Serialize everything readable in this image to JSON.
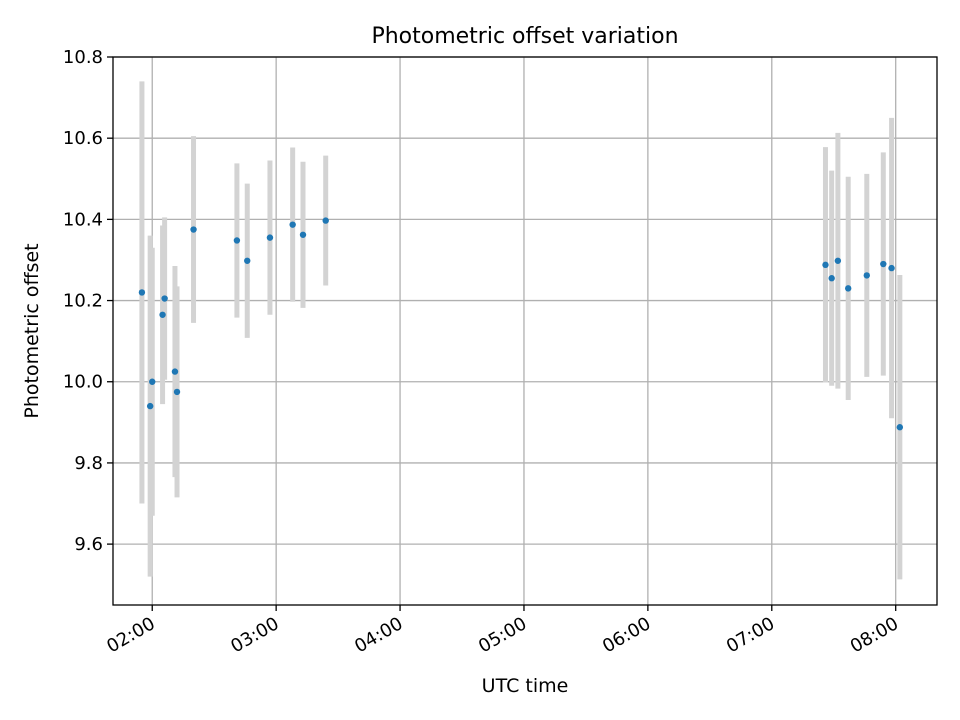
{
  "chart_data": {
    "type": "scatter",
    "title": "Photometric offset variation",
    "xlabel": "UTC time",
    "ylabel": "Photometric offset",
    "xlim": [
      "01:41",
      "08:20"
    ],
    "ylim": [
      9.45,
      10.8
    ],
    "x_ticks": [
      "02:00",
      "03:00",
      "04:00",
      "05:00",
      "06:00",
      "07:00",
      "08:00"
    ],
    "y_ticks": [
      "9.6",
      "9.8",
      "10.0",
      "10.2",
      "10.4",
      "10.6",
      "10.8"
    ],
    "grid": true,
    "legend": "none",
    "point_color": "#1f77b4",
    "errorbar_color": "#d3d3d3",
    "points": [
      {
        "x": "01:55",
        "y": 10.22,
        "yerr": 0.52
      },
      {
        "x": "01:59",
        "y": 9.94,
        "yerr": 0.42
      },
      {
        "x": "02:00",
        "y": 10.0,
        "yerr": 0.33
      },
      {
        "x": "02:05",
        "y": 10.165,
        "yerr": 0.22
      },
      {
        "x": "02:06",
        "y": 10.205,
        "yerr": 0.2
      },
      {
        "x": "02:11",
        "y": 10.025,
        "yerr": 0.26
      },
      {
        "x": "02:12",
        "y": 9.975,
        "yerr": 0.26
      },
      {
        "x": "02:20",
        "y": 10.375,
        "yerr": 0.23
      },
      {
        "x": "02:41",
        "y": 10.348,
        "yerr": 0.19
      },
      {
        "x": "02:46",
        "y": 10.298,
        "yerr": 0.19
      },
      {
        "x": "02:57",
        "y": 10.355,
        "yerr": 0.19
      },
      {
        "x": "03:08",
        "y": 10.387,
        "yerr": 0.19
      },
      {
        "x": "03:13",
        "y": 10.362,
        "yerr": 0.18
      },
      {
        "x": "03:24",
        "y": 10.397,
        "yerr": 0.16
      },
      {
        "x": "07:26",
        "y": 10.288,
        "yerr": 0.29
      },
      {
        "x": "07:29",
        "y": 10.255,
        "yerr": 0.265
      },
      {
        "x": "07:32",
        "y": 10.298,
        "yerr": 0.315
      },
      {
        "x": "07:37",
        "y": 10.23,
        "yerr": 0.275
      },
      {
        "x": "07:46",
        "y": 10.262,
        "yerr": 0.25
      },
      {
        "x": "07:54",
        "y": 10.29,
        "yerr": 0.275
      },
      {
        "x": "07:58",
        "y": 10.28,
        "yerr": 0.37
      },
      {
        "x": "08:02",
        "y": 9.888,
        "yerr": 0.375
      }
    ]
  }
}
